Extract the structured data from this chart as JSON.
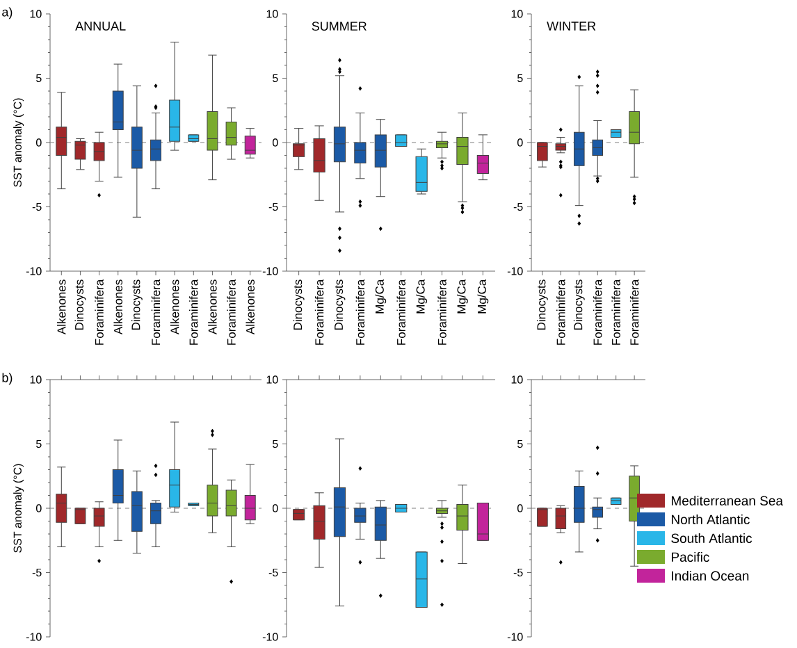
{
  "chart_data": [
    {
      "type": "box",
      "title": "ANNUAL",
      "ylabel": "SST anomaly (°C)",
      "annotations": [
        "a)"
      ],
      "marker": "diamond",
      "categories": [
        "Alkenones",
        "Dinocysts",
        "Foraminifera",
        "Alkenones",
        "Dinocysts",
        "Foraminifera",
        "Alkenones",
        "Foraminifera",
        "Alkenones",
        "Foraminifera",
        "Alkenones"
      ],
      "ylim": [
        -10,
        10
      ],
      "yticks": [
        -10,
        -5,
        0,
        5,
        10
      ],
      "ref_lines": [
        {
          "axis": "y",
          "value": 0,
          "line_style": "dashed",
          "color": "#808080"
        }
      ],
      "series": [
        {
          "color": "#a0282a",
          "boxes": [
            {
              "low": -3.6,
              "q1": -1.0,
              "median": 0.4,
              "q3": 1.2,
              "high": 3.9
            },
            {
              "low": -2.1,
              "q1": -1.3,
              "median": -0.2,
              "q3": 0.1,
              "high": 0.3
            },
            {
              "low": -3.0,
              "q1": -1.4,
              "median": -0.7,
              "q3": 0.0,
              "high": 0.8,
              "outliers": [
                -4.1
              ]
            },
            null,
            null,
            null,
            null,
            null,
            null,
            null,
            null
          ]
        },
        {
          "color": "#1b5aa6",
          "boxes": [
            null,
            null,
            null,
            {
              "low": -2.7,
              "q1": 1.0,
              "median": 1.6,
              "q3": 4.0,
              "high": 6.1
            },
            {
              "low": -5.8,
              "q1": -2.0,
              "median": -0.6,
              "q3": 1.2,
              "high": 4.4
            },
            {
              "low": -3.6,
              "q1": -1.4,
              "median": -0.5,
              "q3": 0.2,
              "high": 2.3,
              "outliers": [
                4.4,
                2.8,
                2.7
              ]
            },
            null,
            null,
            null,
            null,
            null
          ]
        },
        {
          "color": "#29b6e8",
          "boxes": [
            null,
            null,
            null,
            null,
            null,
            null,
            {
              "low": -0.6,
              "q1": 0.1,
              "median": 1.2,
              "q3": 3.3,
              "high": 7.8
            },
            {
              "low": 0.1,
              "q1": 0.1,
              "median": 0.3,
              "q3": 0.6,
              "high": 0.6
            },
            null,
            null,
            null
          ]
        },
        {
          "color": "#7aab2e",
          "boxes": [
            null,
            null,
            null,
            null,
            null,
            null,
            null,
            null,
            {
              "low": -2.9,
              "q1": -0.6,
              "median": 0.3,
              "q3": 2.4,
              "high": 6.8
            },
            {
              "low": -1.3,
              "q1": -0.2,
              "median": 0.4,
              "q3": 1.6,
              "high": 2.7
            },
            null
          ]
        },
        {
          "color": "#c2249b",
          "boxes": [
            null,
            null,
            null,
            null,
            null,
            null,
            null,
            null,
            null,
            null,
            {
              "low": -1.2,
              "q1": -0.9,
              "median": -0.6,
              "q3": 0.5,
              "high": 1.1
            }
          ]
        }
      ]
    },
    {
      "type": "box",
      "title": "SUMMER",
      "marker": "diamond",
      "categories": [
        "Dinocysts",
        "Foraminifera",
        "Dinocysts",
        "Foraminifera",
        "Mg/Ca",
        "Foraminifera",
        "Mg/Ca",
        "Foraminifera",
        "Mg/Ca",
        "Mg/Ca"
      ],
      "ylim": [
        -10,
        10
      ],
      "yticks": [
        -10,
        -5,
        0,
        5,
        10
      ],
      "ref_lines": [
        {
          "axis": "y",
          "value": 0,
          "line_style": "dashed",
          "color": "#808080"
        }
      ],
      "series": [
        {
          "color": "#a0282a",
          "boxes": [
            {
              "low": -2.1,
              "q1": -1.1,
              "median": -0.2,
              "q3": -0.1,
              "high": 1.1
            },
            {
              "low": -4.5,
              "q1": -2.3,
              "median": -1.4,
              "q3": 0.3,
              "high": 1.3
            },
            null,
            null,
            null,
            null,
            null,
            null,
            null,
            null
          ]
        },
        {
          "color": "#1b5aa6",
          "boxes": [
            null,
            null,
            {
              "low": -5.4,
              "q1": -1.5,
              "median": -0.1,
              "q3": 1.2,
              "high": 5.2,
              "outliers": [
                6.4,
                5.7,
                5.5,
                -6.7,
                -7.4,
                -8.4
              ]
            },
            {
              "low": -2.8,
              "q1": -1.6,
              "median": -0.6,
              "q3": 0.0,
              "high": 2.3,
              "outliers": [
                4.2,
                -4.6,
                -4.9
              ]
            },
            {
              "low": -4.2,
              "q1": -1.9,
              "median": -0.6,
              "q3": 0.6,
              "high": 1.8,
              "outliers": [
                -6.7
              ]
            },
            null,
            null,
            null,
            null,
            null
          ]
        },
        {
          "color": "#29b6e8",
          "boxes": [
            null,
            null,
            null,
            null,
            null,
            {
              "low": -0.3,
              "q1": -0.3,
              "median": 0.0,
              "q3": 0.6,
              "high": 0.6
            },
            {
              "low": -4.0,
              "q1": -3.8,
              "median": -3.1,
              "q3": -1.1,
              "high": -0.5
            },
            null,
            null,
            null
          ]
        },
        {
          "color": "#7aab2e",
          "boxes": [
            null,
            null,
            null,
            null,
            null,
            null,
            null,
            {
              "low": -1.2,
              "q1": -0.4,
              "median": -0.1,
              "q3": 0.1,
              "high": 0.8,
              "outliers": [
                -1.5,
                -1.8,
                -2.0
              ]
            },
            {
              "low": -4.6,
              "q1": -1.7,
              "median": -0.3,
              "q3": 0.4,
              "high": 2.3,
              "outliers": [
                -4.9,
                -5.1,
                -5.4
              ]
            },
            null
          ]
        },
        {
          "color": "#c2249b",
          "boxes": [
            null,
            null,
            null,
            null,
            null,
            null,
            null,
            null,
            null,
            {
              "low": -2.9,
              "q1": -2.4,
              "median": -1.6,
              "q3": -1.0,
              "high": 0.6
            }
          ]
        }
      ]
    },
    {
      "type": "box",
      "title": "WINTER",
      "marker": "diamond",
      "categories": [
        "Dinocysts",
        "Foraminifera",
        "Dinocysts",
        "Foraminifera",
        "Foraminifera",
        "Foraminifera"
      ],
      "ylim": [
        -10,
        10
      ],
      "yticks": [
        -10,
        -5,
        0,
        5,
        10
      ],
      "ref_lines": [
        {
          "axis": "y",
          "value": 0,
          "line_style": "dashed",
          "color": "#808080"
        }
      ],
      "series": [
        {
          "color": "#a0282a",
          "boxes": [
            {
              "low": -1.9,
              "q1": -1.4,
              "median": -0.3,
              "q3": 0.0,
              "high": 0.0
            },
            {
              "low": -0.8,
              "q1": -0.6,
              "median": -0.3,
              "q3": -0.1,
              "high": 0.4,
              "outliers": [
                1.0,
                -1.5,
                -1.8,
                -1.9,
                -4.1
              ]
            },
            null,
            null,
            null,
            null
          ]
        },
        {
          "color": "#1b5aa6",
          "boxes": [
            null,
            null,
            {
              "low": -4.9,
              "q1": -1.8,
              "median": -0.5,
              "q3": 0.8,
              "high": 4.4,
              "outliers": [
                5.1,
                -5.7,
                -6.3
              ]
            },
            {
              "low": -2.6,
              "q1": -1.0,
              "median": -0.4,
              "q3": 0.2,
              "high": 1.7,
              "outliers": [
                5.5,
                5.2,
                4.4,
                3.9,
                -2.8,
                -3.0
              ]
            },
            null,
            null
          ]
        },
        {
          "color": "#29b6e8",
          "boxes": [
            null,
            null,
            null,
            null,
            {
              "low": 0.4,
              "q1": 0.4,
              "median": 0.8,
              "q3": 1.0,
              "high": 1.0
            },
            null
          ]
        },
        {
          "color": "#7aab2e",
          "boxes": [
            null,
            null,
            null,
            null,
            null,
            {
              "low": -2.7,
              "q1": -0.1,
              "median": 0.8,
              "q3": 2.4,
              "high": 4.1,
              "outliers": [
                -4.2,
                -4.4,
                -4.7
              ]
            }
          ]
        }
      ]
    },
    {
      "type": "box",
      "ylabel": "SST anomaly (°C)",
      "annotations": [
        "b)"
      ],
      "marker": "diamond",
      "tick_labels": "y",
      "categories": [
        null,
        null,
        null,
        null,
        null,
        null,
        null,
        null,
        null,
        null,
        null
      ],
      "ylim": [
        -10,
        10
      ],
      "yticks": [
        -10,
        -5,
        0,
        5,
        10
      ],
      "ref_lines": [
        {
          "axis": "y",
          "value": 0,
          "line_style": "dashed",
          "color": "#808080"
        }
      ],
      "series": [
        {
          "color": "#a0282a",
          "boxes": [
            {
              "low": -3.0,
              "q1": -1.1,
              "median": 0.4,
              "q3": 1.1,
              "high": 3.2
            },
            {
              "low": -1.2,
              "q1": -1.2,
              "median": -0.1,
              "q3": 0.0,
              "high": 0.0
            },
            {
              "low": -3.0,
              "q1": -1.4,
              "median": -0.6,
              "q3": 0.0,
              "high": 0.5,
              "outliers": [
                -4.1
              ]
            },
            null,
            null,
            null,
            null,
            null,
            null,
            null,
            null
          ]
        },
        {
          "color": "#1b5aa6",
          "boxes": [
            null,
            null,
            null,
            {
              "low": -2.5,
              "q1": 0.4,
              "median": 1.0,
              "q3": 3.0,
              "high": 5.3
            },
            {
              "low": -3.5,
              "q1": -1.8,
              "median": 0.2,
              "q3": 1.3,
              "high": 2.9
            },
            {
              "low": -3.0,
              "q1": -1.2,
              "median": -0.2,
              "q3": 0.4,
              "high": 0.6,
              "outliers": [
                3.3,
                2.6
              ]
            },
            null,
            null,
            null,
            null,
            null
          ]
        },
        {
          "color": "#29b6e8",
          "boxes": [
            null,
            null,
            null,
            null,
            null,
            null,
            {
              "low": -0.3,
              "q1": 0.1,
              "median": 1.8,
              "q3": 3.0,
              "high": 6.7
            },
            {
              "low": 0.2,
              "q1": 0.2,
              "median": 0.3,
              "q3": 0.4,
              "high": 0.4
            },
            null,
            null,
            null
          ]
        },
        {
          "color": "#7aab2e",
          "boxes": [
            null,
            null,
            null,
            null,
            null,
            null,
            null,
            null,
            {
              "low": -1.9,
              "q1": -0.6,
              "median": 0.4,
              "q3": 1.8,
              "high": 4.6,
              "outliers": [
                6.0,
                5.7
              ]
            },
            {
              "low": -3.0,
              "q1": -0.6,
              "median": 0.2,
              "q3": 1.4,
              "high": 2.2,
              "outliers": [
                -5.7
              ]
            },
            null
          ]
        },
        {
          "color": "#c2249b",
          "boxes": [
            null,
            null,
            null,
            null,
            null,
            null,
            null,
            null,
            null,
            null,
            {
              "low": -1.2,
              "q1": -0.9,
              "median": 0.0,
              "q3": 1.0,
              "high": 3.4
            }
          ]
        }
      ]
    },
    {
      "type": "box",
      "marker": "diamond",
      "tick_labels": "y",
      "categories": [
        null,
        null,
        null,
        null,
        null,
        null,
        null,
        null,
        null,
        null
      ],
      "ylim": [
        -10,
        10
      ],
      "yticks": [
        -10,
        -5,
        0,
        5,
        10
      ],
      "ref_lines": [
        {
          "axis": "y",
          "value": 0,
          "line_style": "dashed",
          "color": "#808080"
        }
      ],
      "series": [
        {
          "color": "#a0282a",
          "boxes": [
            {
              "low": -0.9,
              "q1": -0.9,
              "median": -0.4,
              "q3": -0.1,
              "high": -0.1
            },
            {
              "low": -4.6,
              "q1": -2.4,
              "median": -1.0,
              "q3": 0.2,
              "high": 1.2
            },
            null,
            null,
            null,
            null,
            null,
            null,
            null,
            null
          ]
        },
        {
          "color": "#1b5aa6",
          "boxes": [
            null,
            null,
            {
              "low": -7.6,
              "q1": -2.2,
              "median": 0.1,
              "q3": 1.6,
              "high": 5.4
            },
            {
              "low": -2.4,
              "q1": -1.1,
              "median": -0.6,
              "q3": 0.0,
              "high": 0.4,
              "outliers": [
                3.1,
                -4.2
              ]
            },
            {
              "low": -3.9,
              "q1": -2.5,
              "median": -1.3,
              "q3": 0.1,
              "high": 0.6,
              "outliers": [
                -6.8
              ]
            },
            null,
            null,
            null,
            null,
            null
          ]
        },
        {
          "color": "#29b6e8",
          "boxes": [
            null,
            null,
            null,
            null,
            null,
            {
              "low": -0.3,
              "q1": -0.3,
              "median": 0.0,
              "q3": 0.3,
              "high": 0.3
            },
            {
              "low": -7.7,
              "q1": -7.7,
              "median": -5.5,
              "q3": -3.4,
              "high": -3.4
            },
            null,
            null,
            null
          ]
        },
        {
          "color": "#7aab2e",
          "boxes": [
            null,
            null,
            null,
            null,
            null,
            null,
            null,
            {
              "low": -0.7,
              "q1": -0.4,
              "median": -0.2,
              "q3": 0.0,
              "high": 0.6,
              "outliers": [
                -1.2,
                -1.5,
                -2.6,
                -4.1,
                -7.5
              ]
            },
            {
              "low": -4.3,
              "q1": -1.7,
              "median": -0.6,
              "q3": 0.3,
              "high": 1.8
            },
            null
          ]
        },
        {
          "color": "#c2249b",
          "boxes": [
            null,
            null,
            null,
            null,
            null,
            null,
            null,
            null,
            null,
            {
              "low": -2.5,
              "q1": -2.5,
              "median": -2.0,
              "q3": 0.4,
              "high": 0.4
            }
          ]
        }
      ]
    },
    {
      "type": "box",
      "marker": "diamond",
      "tick_labels": "y",
      "legend": "bottom right",
      "categories": [
        null,
        null,
        null,
        null,
        null,
        null
      ],
      "ylim": [
        -10,
        10
      ],
      "yticks": [
        -10,
        -5,
        0,
        5,
        10
      ],
      "ref_lines": [
        {
          "axis": "y",
          "value": 0,
          "line_style": "dashed",
          "color": "#808080"
        }
      ],
      "series": [
        {
          "name": "Mediterranean Sea",
          "color": "#a0282a",
          "boxes": [
            {
              "low": -1.4,
              "q1": -1.4,
              "median": -0.1,
              "q3": 0.0,
              "high": 0.0
            },
            {
              "low": -1.9,
              "q1": -1.6,
              "median": -0.6,
              "q3": 0.0,
              "high": 0.2,
              "outliers": [
                -4.2
              ]
            },
            null,
            null,
            null,
            null
          ]
        },
        {
          "name": "North Atlantic",
          "color": "#1b5aa6",
          "boxes": [
            null,
            null,
            {
              "low": -3.4,
              "q1": -1.1,
              "median": 0.0,
              "q3": 1.7,
              "high": 2.9
            },
            {
              "low": -1.6,
              "q1": -0.7,
              "median": -0.1,
              "q3": 0.1,
              "high": 0.8,
              "outliers": [
                4.7,
                2.7,
                -2.5
              ]
            },
            null,
            null
          ]
        },
        {
          "name": "South Atlantic",
          "color": "#29b6e8",
          "boxes": [
            null,
            null,
            null,
            null,
            {
              "low": 0.3,
              "q1": 0.3,
              "median": 0.6,
              "q3": 0.8,
              "high": 0.8
            },
            null
          ]
        },
        {
          "name": "Pacific",
          "color": "#7aab2e",
          "boxes": [
            null,
            null,
            null,
            null,
            null,
            {
              "low": -4.5,
              "q1": -1.0,
              "median": 0.8,
              "q3": 2.5,
              "high": 3.3
            }
          ]
        },
        {
          "name": "Indian Ocean",
          "color": "#c2249b",
          "boxes": [
            null,
            null,
            null,
            null,
            null,
            null
          ]
        }
      ]
    }
  ]
}
